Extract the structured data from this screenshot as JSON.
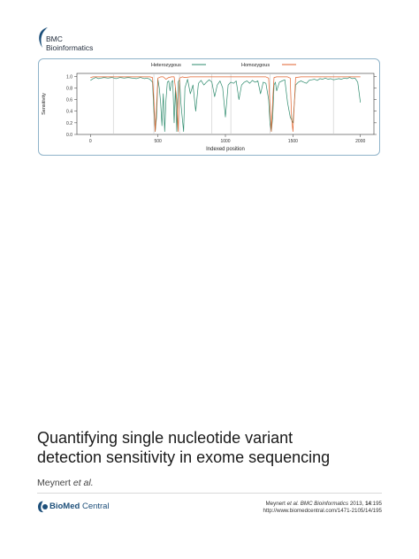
{
  "journal": {
    "line1": "BMC",
    "line2": "Bioinformatics"
  },
  "chart_data": {
    "type": "line",
    "xlabel": "Indexed position",
    "ylabel": "Sensitivity",
    "xlim": [
      -100,
      2100
    ],
    "ylim": [
      0.0,
      1.05
    ],
    "x_ticks": [
      "0",
      "500",
      "1000",
      "1500",
      "2000"
    ],
    "y_ticks": [
      "0.0",
      "0.2",
      "0.4",
      "0.6",
      "0.8",
      "1.0"
    ],
    "legend": [
      "Heterozygous",
      "Homozygous"
    ],
    "legend_position": "top",
    "colors": {
      "Heterozygous": "#2e8b6d",
      "Homozygous": "#e2622c"
    },
    "vertical_gridlines_x": [
      170,
      470,
      660,
      900,
      1040,
      1330,
      1800
    ],
    "series": [
      {
        "name": "Heterozygous",
        "x": [
          0,
          20,
          40,
          60,
          80,
          100,
          130,
          160,
          190,
          220,
          250,
          280,
          310,
          340,
          370,
          400,
          420,
          440,
          460,
          470,
          480,
          490,
          500,
          510,
          520,
          530,
          540,
          550,
          560,
          570,
          580,
          590,
          600,
          610,
          620,
          630,
          640,
          650,
          660,
          670,
          680,
          690,
          700,
          720,
          740,
          760,
          780,
          800,
          820,
          840,
          860,
          880,
          900,
          920,
          940,
          960,
          980,
          1000,
          1020,
          1040,
          1060,
          1080,
          1100,
          1120,
          1140,
          1160,
          1180,
          1200,
          1220,
          1240,
          1260,
          1280,
          1300,
          1320,
          1330,
          1340,
          1350,
          1360,
          1370,
          1380,
          1400,
          1420,
          1440,
          1460,
          1480,
          1500,
          1520,
          1540,
          1560,
          1580,
          1600,
          1620,
          1640,
          1660,
          1680,
          1700,
          1720,
          1740,
          1760,
          1780,
          1800,
          1820,
          1840,
          1860,
          1880,
          1900,
          1920,
          1940,
          1960,
          1980,
          2000
        ],
        "values": [
          0.93,
          0.96,
          0.98,
          0.96,
          0.97,
          0.98,
          0.97,
          0.98,
          0.96,
          0.98,
          0.97,
          0.98,
          0.97,
          0.96,
          0.98,
          0.96,
          0.97,
          0.95,
          0.9,
          0.4,
          0.05,
          0.3,
          0.95,
          0.8,
          0.55,
          0.15,
          0.7,
          0.05,
          0.6,
          0.9,
          0.92,
          0.75,
          0.9,
          0.93,
          0.2,
          0.8,
          0.05,
          0.9,
          0.95,
          0.55,
          0.3,
          0.05,
          0.8,
          0.95,
          0.7,
          0.85,
          0.4,
          0.88,
          0.93,
          0.85,
          0.9,
          0.94,
          0.9,
          0.65,
          0.85,
          0.92,
          0.8,
          0.3,
          0.85,
          0.9,
          0.88,
          0.92,
          0.6,
          0.85,
          0.9,
          0.92,
          0.88,
          0.93,
          0.9,
          0.92,
          0.7,
          0.9,
          0.88,
          0.6,
          0.2,
          0.05,
          0.3,
          0.85,
          0.9,
          0.75,
          0.9,
          0.92,
          0.94,
          0.55,
          0.3,
          0.2,
          0.85,
          0.9,
          0.92,
          0.9,
          0.88,
          0.93,
          0.94,
          0.95,
          0.93,
          0.96,
          0.95,
          0.97,
          0.95,
          0.96,
          0.94,
          0.95,
          0.96,
          0.95,
          0.97,
          0.96,
          0.98,
          0.96,
          0.97,
          0.9,
          0.55
        ]
      },
      {
        "name": "Homozygous",
        "x": [
          0,
          20,
          40,
          60,
          80,
          100,
          150,
          200,
          250,
          300,
          350,
          400,
          440,
          460,
          470,
          480,
          490,
          500,
          520,
          540,
          560,
          580,
          600,
          620,
          640,
          650,
          660,
          680,
          700,
          740,
          780,
          820,
          860,
          900,
          950,
          1000,
          1050,
          1100,
          1150,
          1200,
          1250,
          1300,
          1320,
          1330,
          1340,
          1350,
          1360,
          1380,
          1420,
          1460,
          1480,
          1490,
          1500,
          1520,
          1560,
          1600,
          1650,
          1700,
          1750,
          1800,
          1850,
          1900,
          1950,
          2000
        ],
        "values": [
          0.98,
          0.99,
          0.99,
          0.99,
          0.99,
          0.99,
          0.99,
          0.99,
          0.99,
          0.99,
          0.99,
          0.99,
          0.99,
          0.98,
          0.6,
          0.05,
          0.5,
          0.97,
          0.99,
          0.99,
          0.95,
          0.98,
          0.99,
          0.99,
          0.6,
          0.05,
          0.97,
          0.99,
          0.98,
          0.99,
          0.99,
          0.99,
          0.99,
          0.99,
          0.99,
          0.99,
          0.99,
          0.99,
          0.99,
          0.99,
          0.99,
          0.99,
          0.97,
          0.5,
          0.05,
          0.6,
          0.98,
          0.99,
          0.99,
          0.99,
          0.97,
          0.3,
          0.05,
          0.98,
          0.99,
          0.99,
          0.99,
          0.99,
          0.99,
          0.99,
          0.99,
          0.99,
          0.99,
          0.99
        ]
      }
    ]
  },
  "paper": {
    "title_line1": "Quantifying single nucleotide variant",
    "title_line2": "detection sensitivity in exome sequencing",
    "author": "Meynert",
    "etal": "et al."
  },
  "publisher": {
    "brand_bold": "BioMed",
    "brand_light": " Central"
  },
  "citation": {
    "author": "Meynert",
    "etal": "et al.",
    "journal": "BMC Bioinformatics",
    "year": "2013,",
    "volume": "14",
    "article": ":195",
    "url": "http://www.biomedcentral.com/1471-2105/14/195"
  }
}
